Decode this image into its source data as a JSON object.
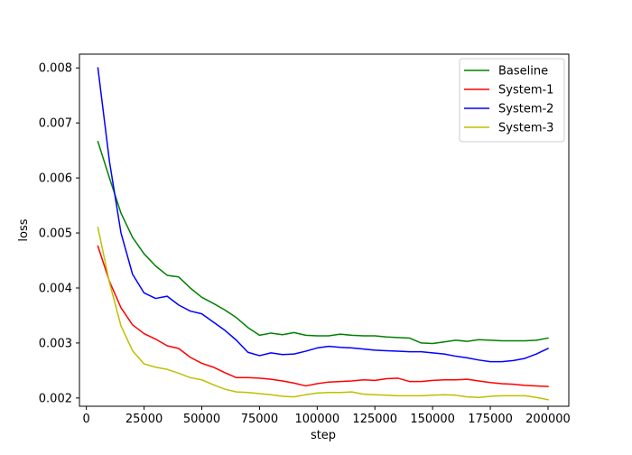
{
  "chart_data": {
    "type": "line",
    "title": "",
    "xlabel": "step",
    "ylabel": "loss",
    "xlim": [
      -3000,
      209000
    ],
    "ylim": [
      0.00185,
      0.00825
    ],
    "xticks": [
      0,
      25000,
      50000,
      75000,
      100000,
      125000,
      150000,
      175000,
      200000
    ],
    "xtick_labels": [
      "0",
      "25000",
      "50000",
      "75000",
      "100000",
      "125000",
      "150000",
      "175000",
      "200000"
    ],
    "yticks": [
      0.002,
      0.003,
      0.004,
      0.005,
      0.006,
      0.007,
      0.008
    ],
    "ytick_labels": [
      "0.002",
      "0.003",
      "0.004",
      "0.005",
      "0.006",
      "0.007",
      "0.008"
    ],
    "grid": false,
    "legend": "top-right",
    "series": [
      {
        "name": "Baseline",
        "color": "#008000",
        "points": [
          [
            5000,
            0.00666
          ],
          [
            10000,
            0.006
          ],
          [
            15000,
            0.00536
          ],
          [
            20000,
            0.00492
          ],
          [
            25000,
            0.00462
          ],
          [
            30000,
            0.0044
          ],
          [
            35000,
            0.00423
          ],
          [
            40000,
            0.0042
          ],
          [
            45000,
            0.004
          ],
          [
            50000,
            0.00383
          ],
          [
            55000,
            0.00372
          ],
          [
            60000,
            0.0036
          ],
          [
            65000,
            0.00346
          ],
          [
            70000,
            0.00328
          ],
          [
            75000,
            0.00314
          ],
          [
            80000,
            0.00318
          ],
          [
            85000,
            0.00315
          ],
          [
            90000,
            0.00319
          ],
          [
            95000,
            0.00314
          ],
          [
            100000,
            0.00313
          ],
          [
            105000,
            0.00313
          ],
          [
            110000,
            0.00316
          ],
          [
            115000,
            0.00314
          ],
          [
            120000,
            0.00313
          ],
          [
            125000,
            0.00313
          ],
          [
            130000,
            0.00311
          ],
          [
            135000,
            0.0031
          ],
          [
            140000,
            0.00309
          ],
          [
            145000,
            0.003
          ],
          [
            150000,
            0.00299
          ],
          [
            155000,
            0.00302
          ],
          [
            160000,
            0.00305
          ],
          [
            165000,
            0.00303
          ],
          [
            170000,
            0.00306
          ],
          [
            175000,
            0.00305
          ],
          [
            180000,
            0.00304
          ],
          [
            185000,
            0.00304
          ],
          [
            190000,
            0.00304
          ],
          [
            195000,
            0.00305
          ],
          [
            200000,
            0.00309
          ]
        ]
      },
      {
        "name": "System-1",
        "color": "#ff0000",
        "points": [
          [
            5000,
            0.00476
          ],
          [
            10000,
            0.00412
          ],
          [
            15000,
            0.00364
          ],
          [
            20000,
            0.00333
          ],
          [
            25000,
            0.00317
          ],
          [
            30000,
            0.00307
          ],
          [
            35000,
            0.00295
          ],
          [
            40000,
            0.0029
          ],
          [
            45000,
            0.00274
          ],
          [
            50000,
            0.00263
          ],
          [
            55000,
            0.00256
          ],
          [
            60000,
            0.00246
          ],
          [
            65000,
            0.00237
          ],
          [
            70000,
            0.00237
          ],
          [
            75000,
            0.00236
          ],
          [
            80000,
            0.00234
          ],
          [
            85000,
            0.00231
          ],
          [
            90000,
            0.00227
          ],
          [
            95000,
            0.00222
          ],
          [
            100000,
            0.00226
          ],
          [
            105000,
            0.00229
          ],
          [
            110000,
            0.0023
          ],
          [
            115000,
            0.00231
          ],
          [
            120000,
            0.00233
          ],
          [
            125000,
            0.00232
          ],
          [
            130000,
            0.00235
          ],
          [
            135000,
            0.00236
          ],
          [
            140000,
            0.0023
          ],
          [
            145000,
            0.0023
          ],
          [
            150000,
            0.00232
          ],
          [
            155000,
            0.00233
          ],
          [
            160000,
            0.00233
          ],
          [
            165000,
            0.00234
          ],
          [
            170000,
            0.00231
          ],
          [
            175000,
            0.00228
          ],
          [
            180000,
            0.00226
          ],
          [
            185000,
            0.00225
          ],
          [
            190000,
            0.00223
          ],
          [
            195000,
            0.00222
          ],
          [
            200000,
            0.00221
          ]
        ]
      },
      {
        "name": "System-2",
        "color": "#0000ff",
        "points": [
          [
            5000,
            0.008
          ],
          [
            10000,
            0.0063
          ],
          [
            15000,
            0.005
          ],
          [
            20000,
            0.00425
          ],
          [
            25000,
            0.00391
          ],
          [
            30000,
            0.00381
          ],
          [
            35000,
            0.00385
          ],
          [
            40000,
            0.00369
          ],
          [
            45000,
            0.00358
          ],
          [
            50000,
            0.00353
          ],
          [
            55000,
            0.00338
          ],
          [
            60000,
            0.00323
          ],
          [
            65000,
            0.00305
          ],
          [
            70000,
            0.00283
          ],
          [
            75000,
            0.00277
          ],
          [
            80000,
            0.00282
          ],
          [
            85000,
            0.00279
          ],
          [
            90000,
            0.0028
          ],
          [
            95000,
            0.00285
          ],
          [
            100000,
            0.00291
          ],
          [
            105000,
            0.00294
          ],
          [
            110000,
            0.00292
          ],
          [
            115000,
            0.00291
          ],
          [
            120000,
            0.00289
          ],
          [
            125000,
            0.00287
          ],
          [
            130000,
            0.00286
          ],
          [
            135000,
            0.00285
          ],
          [
            140000,
            0.00284
          ],
          [
            145000,
            0.00284
          ],
          [
            150000,
            0.00282
          ],
          [
            155000,
            0.0028
          ],
          [
            160000,
            0.00276
          ],
          [
            165000,
            0.00273
          ],
          [
            170000,
            0.00269
          ],
          [
            175000,
            0.00266
          ],
          [
            180000,
            0.00266
          ],
          [
            185000,
            0.00268
          ],
          [
            190000,
            0.00272
          ],
          [
            195000,
            0.0028
          ],
          [
            200000,
            0.0029
          ]
        ]
      },
      {
        "name": "System-3",
        "color": "#bfbf00",
        "points": [
          [
            5000,
            0.0051
          ],
          [
            10000,
            0.0041
          ],
          [
            15000,
            0.00331
          ],
          [
            20000,
            0.00286
          ],
          [
            25000,
            0.00262
          ],
          [
            30000,
            0.00256
          ],
          [
            35000,
            0.00252
          ],
          [
            40000,
            0.00245
          ],
          [
            45000,
            0.00237
          ],
          [
            50000,
            0.00233
          ],
          [
            55000,
            0.00224
          ],
          [
            60000,
            0.00216
          ],
          [
            65000,
            0.00211
          ],
          [
            70000,
            0.0021
          ],
          [
            75000,
            0.00208
          ],
          [
            80000,
            0.00206
          ],
          [
            85000,
            0.00203
          ],
          [
            90000,
            0.00202
          ],
          [
            95000,
            0.00206
          ],
          [
            100000,
            0.00209
          ],
          [
            105000,
            0.0021
          ],
          [
            110000,
            0.0021
          ],
          [
            115000,
            0.00211
          ],
          [
            120000,
            0.00207
          ],
          [
            125000,
            0.00206
          ],
          [
            130000,
            0.00205
          ],
          [
            135000,
            0.00204
          ],
          [
            140000,
            0.00204
          ],
          [
            145000,
            0.00204
          ],
          [
            150000,
            0.00205
          ],
          [
            155000,
            0.00206
          ],
          [
            160000,
            0.00205
          ],
          [
            165000,
            0.00202
          ],
          [
            170000,
            0.00201
          ],
          [
            175000,
            0.00203
          ],
          [
            180000,
            0.00204
          ],
          [
            185000,
            0.00204
          ],
          [
            190000,
            0.00204
          ],
          [
            195000,
            0.00201
          ],
          [
            200000,
            0.00197
          ]
        ]
      }
    ]
  }
}
